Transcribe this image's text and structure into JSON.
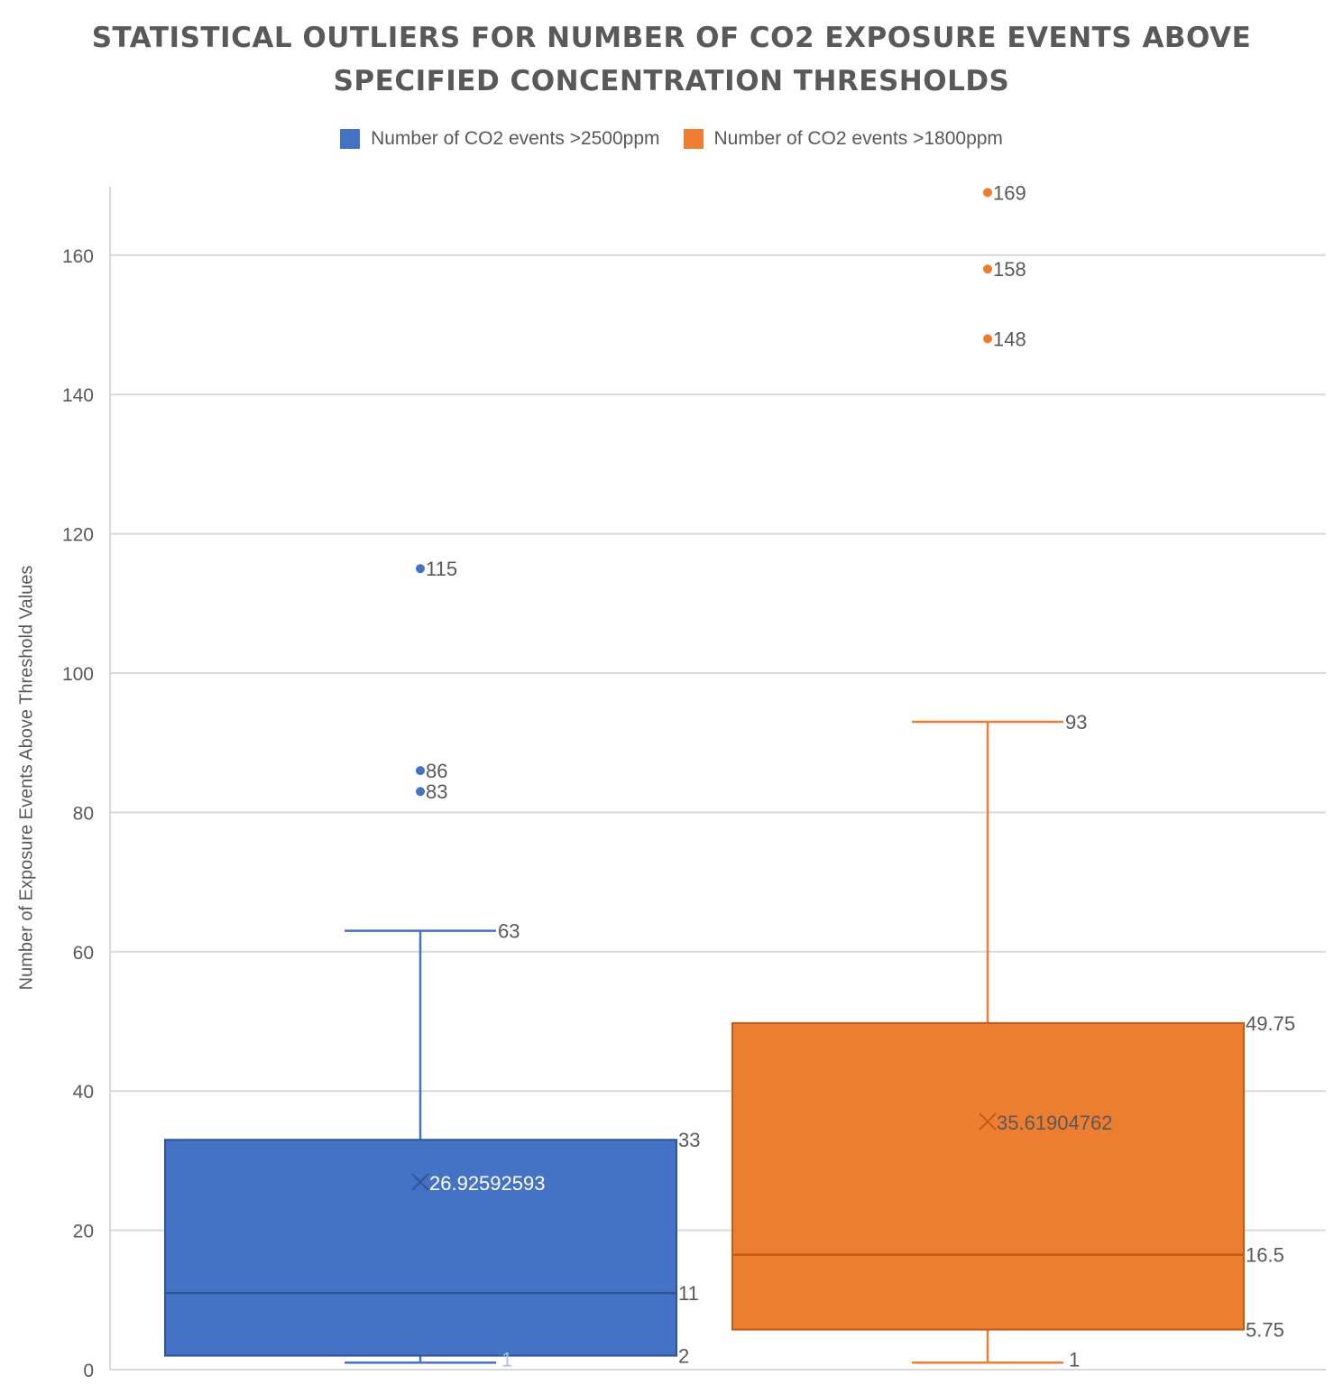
{
  "chart_data": {
    "type": "box",
    "title_lines": [
      "STATISTICAL OUTLIERS FOR NUMBER OF CO2 EXPOSURE EVENTS ABOVE",
      "SPECIFIED CONCENTRATION THRESHOLDS"
    ],
    "ylabel": "Number of Exposure Events Above Threshold Values",
    "xlabel": "",
    "ylim": [
      0,
      170
    ],
    "yticks": [
      0,
      20,
      40,
      60,
      80,
      100,
      120,
      140,
      160
    ],
    "grid": true,
    "legend_position": "top-center",
    "series": [
      {
        "name": "Number of CO2 events >2500ppm",
        "color": "#4472C4",
        "min": 1,
        "q1": 2,
        "median": 11,
        "q3": 33,
        "max": 63,
        "mean": 26.92592593,
        "mean_label": "26.92592593",
        "outliers": [
          115,
          86,
          83
        ],
        "labels": {
          "max": "63",
          "q3": "33",
          "median": "11",
          "q1": "2",
          "min": "1",
          "outliers": [
            "115",
            "86",
            "83"
          ]
        }
      },
      {
        "name": "Number of CO2 events >1800ppm",
        "color": "#ED7D31",
        "min": 1,
        "q1": 5.75,
        "median": 16.5,
        "q3": 49.75,
        "max": 93,
        "mean": 35.61904762,
        "mean_label": "35.61904762",
        "outliers": [
          169,
          158,
          148
        ],
        "labels": {
          "max": "93",
          "q3": "49.75",
          "median": "16.5",
          "q1": "5.75",
          "min": "1",
          "outliers": [
            "169",
            "158",
            "148"
          ]
        }
      }
    ]
  }
}
